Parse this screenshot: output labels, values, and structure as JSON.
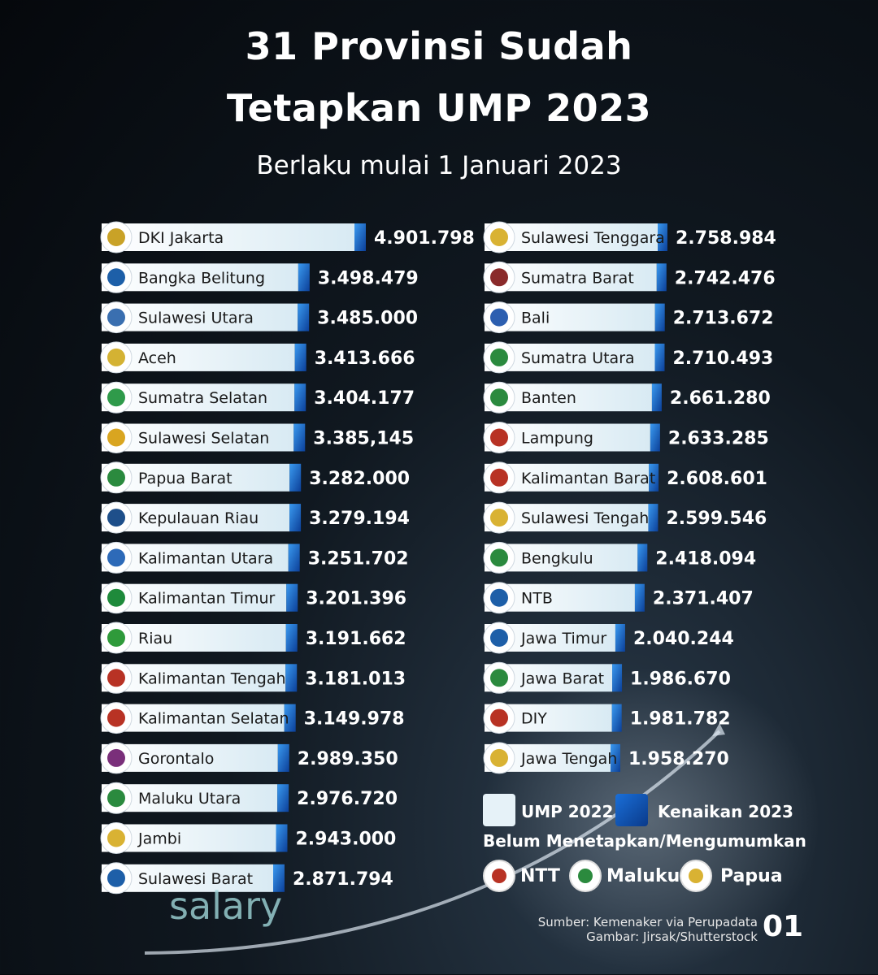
{
  "title_line1": "31 Provinsi Sudah",
  "title_line2": "Tetapkan UMP 2023",
  "subtitle": "Berlaku mulai 1 Januari 2023",
  "chart_data": {
    "type": "bar",
    "title": "31 Provinsi Sudah Tetapkan UMP 2023",
    "series_legend": [
      "UMP 2022",
      "Kenaikan 2023"
    ],
    "colors": {
      "ump2022": "#e6f2f8",
      "kenaikan": "#1f7fe0"
    },
    "left_column": [
      {
        "name": "DKI Jakarta",
        "label": "4.901.798",
        "value": 4901798,
        "emblem": "#c9a227"
      },
      {
        "name": "Bangka Belitung",
        "label": "3.498.479",
        "value": 3498479,
        "emblem": "#1d5fa8"
      },
      {
        "name": "Sulawesi Utara",
        "label": "3.485.000",
        "value": 3485000,
        "emblem": "#3a6fb0"
      },
      {
        "name": "Aceh",
        "label": "3.413.666",
        "value": 3413666,
        "emblem": "#d4b233"
      },
      {
        "name": "Sumatra Selatan",
        "label": "3.404.177",
        "value": 3404177,
        "emblem": "#2f9a4a"
      },
      {
        "name": "Sulawesi Selatan",
        "label": "3.385,145",
        "value": 3385145,
        "emblem": "#d9a520"
      },
      {
        "name": "Papua Barat",
        "label": "3.282.000",
        "value": 3282000,
        "emblem": "#2b8a3e"
      },
      {
        "name": "Kepulauan Riau",
        "label": "3.279.194",
        "value": 3279194,
        "emblem": "#1e4f8a"
      },
      {
        "name": "Kalimantan Utara",
        "label": "3.251.702",
        "value": 3251702,
        "emblem": "#2d6ab8"
      },
      {
        "name": "Kalimantan Timur",
        "label": "3.201.396",
        "value": 3201396,
        "emblem": "#1f8a3b"
      },
      {
        "name": "Riau",
        "label": "3.191.662",
        "value": 3191662,
        "emblem": "#2f9a3a"
      },
      {
        "name": "Kalimantan Tengah",
        "label": "3.181.013",
        "value": 3181013,
        "emblem": "#b83224"
      },
      {
        "name": "Kalimantan Selatan",
        "label": "3.149.978",
        "value": 3149978,
        "emblem": "#b83224"
      },
      {
        "name": "Gorontalo",
        "label": "2.989.350",
        "value": 2989350,
        "emblem": "#7a2f7a"
      },
      {
        "name": "Maluku Utara",
        "label": "2.976.720",
        "value": 2976720,
        "emblem": "#2b8a3e"
      },
      {
        "name": "Jambi",
        "label": "2.943.000",
        "value": 2943000,
        "emblem": "#d9b233"
      },
      {
        "name": "Sulawesi Barat",
        "label": "2.871.794",
        "value": 2871794,
        "emblem": "#1e5fa8"
      }
    ],
    "right_column": [
      {
        "name": "Sulawesi Tenggara",
        "label": "2.758.984",
        "value": 2758984,
        "emblem": "#d9b233"
      },
      {
        "name": "Sumatra Barat",
        "label": "2.742.476",
        "value": 2742476,
        "emblem": "#8a2a2a"
      },
      {
        "name": "Bali",
        "label": "2.713.672",
        "value": 2713672,
        "emblem": "#2d5fb0"
      },
      {
        "name": "Sumatra Utara",
        "label": "2.710.493",
        "value": 2710493,
        "emblem": "#2b8a3e"
      },
      {
        "name": "Banten",
        "label": "2.661.280",
        "value": 2661280,
        "emblem": "#2b8a3e"
      },
      {
        "name": "Lampung",
        "label": "2.633.285",
        "value": 2633285,
        "emblem": "#b83224"
      },
      {
        "name": "Kalimantan Barat",
        "label": "2.608.601",
        "value": 2608601,
        "emblem": "#b83224"
      },
      {
        "name": "Sulawesi Tengah",
        "label": "2.599.546",
        "value": 2599546,
        "emblem": "#d9b233"
      },
      {
        "name": "Bengkulu",
        "label": "2.418.094",
        "value": 2418094,
        "emblem": "#2b8a3e"
      },
      {
        "name": "NTB",
        "label": "2.371.407",
        "value": 2371407,
        "emblem": "#1e5fa8"
      },
      {
        "name": "Jawa Timur",
        "label": "2.040.244",
        "value": 2040244,
        "emblem": "#1e5fa8"
      },
      {
        "name": "Jawa Barat",
        "label": "1.986.670",
        "value": 1986670,
        "emblem": "#2b8a3e"
      },
      {
        "name": "DIY",
        "label": "1.981.782",
        "value": 1981782,
        "emblem": "#b83224"
      },
      {
        "name": "Jawa Tengah",
        "label": "1.958.270",
        "value": 1958270,
        "emblem": "#d9b233"
      }
    ]
  },
  "legend": {
    "ump2022": "UMP 2022",
    "kenaikan": "Kenaikan 2023"
  },
  "pending": {
    "heading": "Belum Menetapkan/Mengumumkan",
    "items": [
      {
        "name": "NTT",
        "emblem": "#b83224"
      },
      {
        "name": "Maluku",
        "emblem": "#2b8a3e"
      },
      {
        "name": "Papua",
        "emblem": "#d9b233"
      }
    ]
  },
  "watermark": "salary",
  "source": {
    "line1": "Sumber: Kemenaker via Perupadata",
    "line2": "Gambar: Jirsak/Shutterstock"
  },
  "page_number": "01"
}
